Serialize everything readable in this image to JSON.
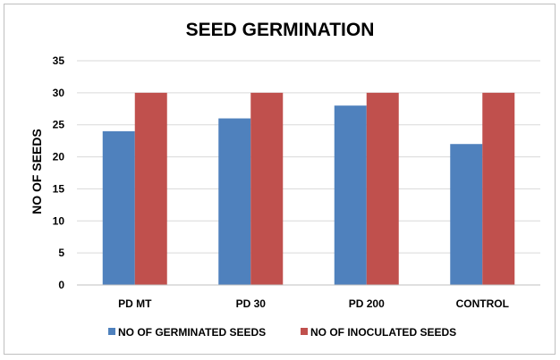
{
  "chart_data": {
    "type": "bar",
    "title": "SEED GERMINATION",
    "xlabel": "",
    "ylabel": "NO OF SEEDS",
    "ylim": [
      0,
      35
    ],
    "yticks": [
      "0",
      "5",
      "10",
      "15",
      "20",
      "25",
      "30",
      "35"
    ],
    "grid": true,
    "legend_position": "bottom",
    "categories": [
      "PD MT",
      "PD 30",
      "PD 200",
      "CONTROL"
    ],
    "series": [
      {
        "name": "NO OF GERMINATED SEEDS",
        "values": [
          24,
          26,
          28,
          22
        ],
        "color": "#4f81bd"
      },
      {
        "name": "NO OF INOCULATED SEEDS",
        "values": [
          30,
          30,
          30,
          30
        ],
        "color": "#c0504d"
      }
    ]
  }
}
